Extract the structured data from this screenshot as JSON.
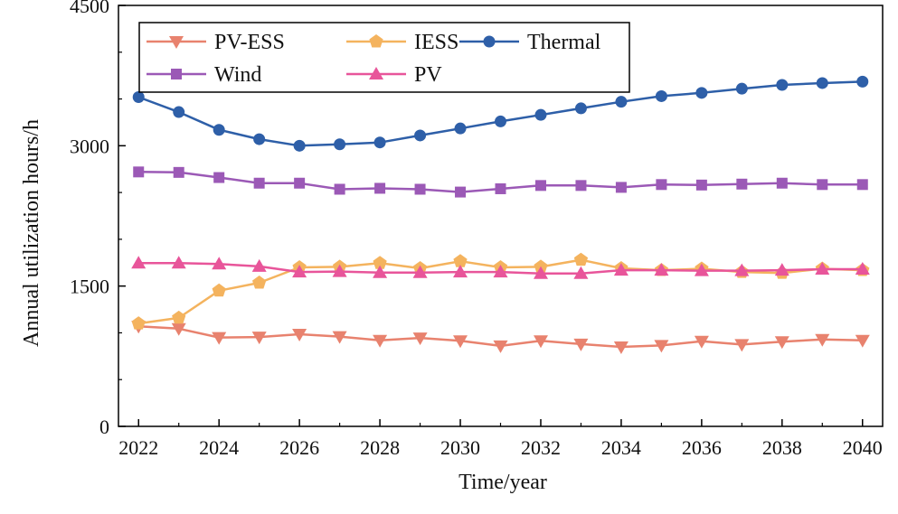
{
  "chart_data": {
    "type": "line",
    "title": "",
    "xlabel": "Time/year",
    "ylabel": "Annual utilization hours/h",
    "xlim": [
      2021.5,
      2040.5
    ],
    "ylim": [
      0,
      4500
    ],
    "x_ticks": [
      2022,
      2024,
      2026,
      2028,
      2030,
      2032,
      2034,
      2036,
      2038,
      2040
    ],
    "x_tick_labels": [
      "2022",
      "2024",
      "2026",
      "2028",
      "2030",
      "2032",
      "2034",
      "2036",
      "2038",
      "2040"
    ],
    "y_ticks": [
      0,
      1500,
      3000,
      4500
    ],
    "y_tick_labels": [
      "0",
      "1500",
      "3000",
      "4500"
    ],
    "x": [
      2022,
      2023,
      2024,
      2025,
      2026,
      2027,
      2028,
      2029,
      2030,
      2031,
      2032,
      2033,
      2034,
      2035,
      2036,
      2037,
      2038,
      2039,
      2040
    ],
    "legend_position": "top-left",
    "series": [
      {
        "name": "PV-ESS",
        "color": "#E8826E",
        "marker": "triangle-down",
        "values": [
          1070,
          1045,
          950,
          955,
          985,
          960,
          920,
          945,
          915,
          860,
          915,
          880,
          850,
          865,
          910,
          875,
          905,
          930,
          920
        ]
      },
      {
        "name": "IESS",
        "color": "#F4B35E",
        "marker": "pentagon",
        "values": [
          1100,
          1160,
          1450,
          1535,
          1700,
          1705,
          1745,
          1690,
          1765,
          1700,
          1705,
          1780,
          1690,
          1670,
          1685,
          1650,
          1640,
          1685,
          1670
        ]
      },
      {
        "name": "Thermal",
        "color": "#2E5FA8",
        "marker": "circle",
        "values": [
          3520,
          3360,
          3170,
          3070,
          3000,
          3015,
          3035,
          3110,
          3185,
          3260,
          3330,
          3400,
          3470,
          3530,
          3565,
          3610,
          3650,
          3670,
          3685
        ]
      },
      {
        "name": "Wind",
        "color": "#9B59B6",
        "marker": "square",
        "values": [
          2720,
          2715,
          2660,
          2600,
          2600,
          2535,
          2545,
          2535,
          2505,
          2540,
          2575,
          2575,
          2555,
          2585,
          2580,
          2590,
          2600,
          2585,
          2585
        ]
      },
      {
        "name": "PV",
        "color": "#E8559A",
        "marker": "triangle-up",
        "values": [
          1745,
          1745,
          1735,
          1710,
          1650,
          1655,
          1645,
          1645,
          1650,
          1650,
          1635,
          1635,
          1670,
          1670,
          1665,
          1665,
          1670,
          1680,
          1680
        ]
      }
    ]
  }
}
